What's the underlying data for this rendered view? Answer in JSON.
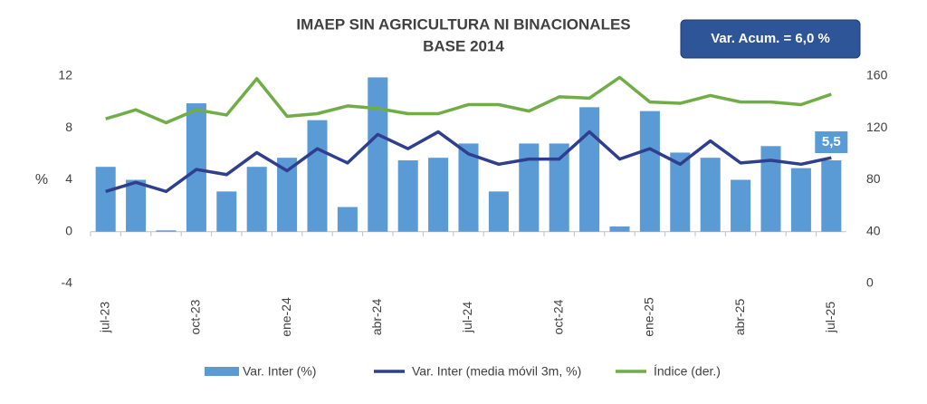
{
  "chart_data": {
    "type": "bar-line",
    "title": "IMAEP SIN AGRICULTURA NI BINACIONALES",
    "subtitle": "BASE 2014",
    "annotation": "Var. Acum. =  6,0 %",
    "y_label": "%",
    "categories": [
      "jul-23",
      null,
      null,
      "oct-23",
      null,
      null,
      "ene-24",
      null,
      null,
      "abr-24",
      null,
      null,
      "jul-24",
      null,
      null,
      "oct-24",
      null,
      null,
      "ene-25",
      null,
      null,
      "abr-25",
      null,
      null,
      "jul-25"
    ],
    "series": [
      {
        "name": "Var. Inter (%)",
        "kind": "bar",
        "color": "#5b9bd5",
        "values": [
          5.0,
          4.0,
          0.1,
          9.9,
          3.1,
          5.0,
          5.7,
          8.6,
          1.9,
          11.9,
          5.5,
          5.7,
          6.8,
          3.1,
          6.8,
          6.8,
          9.6,
          0.4,
          9.3,
          6.1,
          5.7,
          4.0,
          6.6,
          4.9,
          5.5
        ],
        "value_labels": [
          null,
          null,
          null,
          null,
          null,
          null,
          null,
          null,
          null,
          null,
          null,
          null,
          null,
          null,
          null,
          null,
          null,
          null,
          null,
          null,
          null,
          null,
          null,
          null,
          "5,5"
        ]
      },
      {
        "name": "Var. Inter (media móvil 3m, %)",
        "kind": "line",
        "color": "#2f3e8e",
        "values": [
          3.1,
          3.8,
          3.1,
          4.8,
          4.4,
          6.1,
          4.7,
          6.4,
          5.3,
          7.5,
          6.4,
          7.7,
          6.0,
          5.2,
          5.6,
          5.6,
          7.7,
          5.6,
          6.4,
          5.2,
          7.0,
          5.3,
          5.5,
          5.2,
          5.7
        ]
      },
      {
        "name": "Índice (der.)",
        "kind": "line",
        "axis": "y2",
        "color": "#70ad47",
        "values": [
          127,
          134,
          124,
          134,
          130,
          158,
          129,
          131,
          137,
          135,
          131,
          131,
          138,
          138,
          133,
          144,
          143,
          159,
          140,
          139,
          145,
          140,
          140,
          138,
          146
        ]
      }
    ],
    "ylim": [
      -4,
      12
    ],
    "yticks": [
      -4,
      0,
      4,
      8,
      12
    ],
    "y2lim": [
      0,
      160
    ],
    "y2ticks": [
      0,
      40,
      80,
      120,
      160
    ]
  }
}
